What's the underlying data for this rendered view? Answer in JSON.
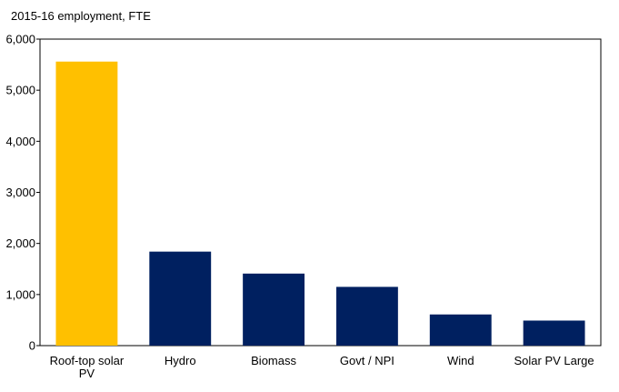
{
  "chart_data": {
    "type": "bar",
    "title": "2015-16  employment, FTE",
    "xlabel": "",
    "ylabel": "",
    "categories": [
      "Roof-top solar PV",
      "Hydro",
      "Biomass",
      "Govt / NPI",
      "Wind",
      "Solar PV Large"
    ],
    "category_lines": [
      [
        "Roof-top solar",
        "PV"
      ],
      [
        "Hydro"
      ],
      [
        "Biomass"
      ],
      [
        "Govt / NPI"
      ],
      [
        "Wind"
      ],
      [
        "Solar PV Large"
      ]
    ],
    "values": [
      5560,
      1840,
      1410,
      1150,
      610,
      490
    ],
    "ylim": [
      0,
      6000
    ],
    "yticks": [
      0,
      1000,
      2000,
      3000,
      4000,
      5000,
      6000
    ],
    "ytick_labels": [
      "0",
      "1,000",
      "2,000",
      "3,000",
      "4,000",
      "5,000",
      "6,000"
    ],
    "grid": false,
    "legend": "none",
    "colors": {
      "highlight": "#FFC000",
      "default": "#002060",
      "axis": "#000000"
    },
    "highlight_index": 0
  }
}
